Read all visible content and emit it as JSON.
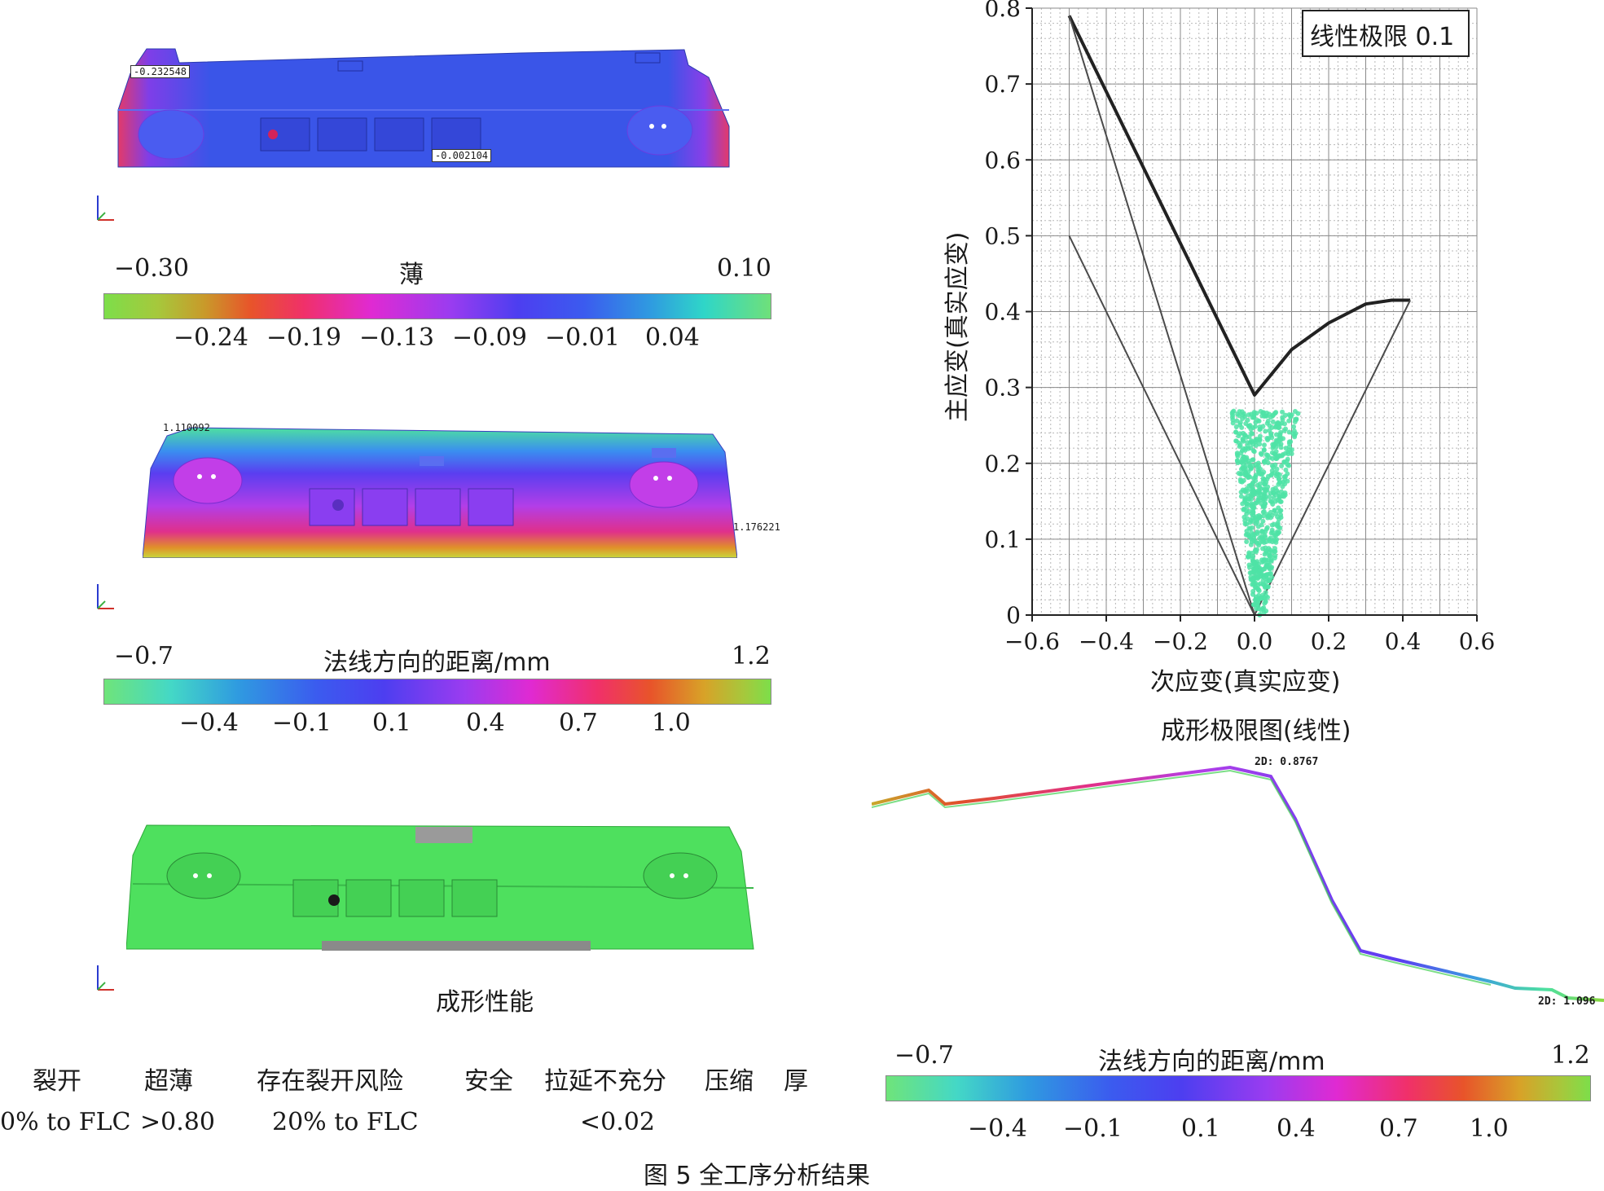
{
  "panel1": {
    "probe_top": "-0.232548",
    "probe_bottom": "-0.002104",
    "colorbar": {
      "min": "−0.30",
      "title": "薄",
      "max": "0.10",
      "ticks": [
        "−0.24",
        "−0.19",
        "−0.13",
        "−0.09",
        "−0.01",
        "0.04"
      ]
    }
  },
  "panel2": {
    "probe_top": "1.110092",
    "probe_right": "1.176221",
    "colorbar": {
      "min": "−0.7",
      "title": "法线方向的距离/mm",
      "max": "1.2",
      "ticks": [
        "−0.4",
        "−0.1",
        "0.1",
        "0.4",
        "0.7",
        "1.0"
      ]
    }
  },
  "panel3": {
    "caption": "成形性能"
  },
  "legend": {
    "headers": [
      "裂开",
      "超薄",
      "存在裂开风险",
      "安全",
      "拉延不充分",
      "压缩",
      "厚"
    ],
    "values": [
      "0% to FLC",
      ">0.80",
      "20% to FLC",
      "<0.02"
    ]
  },
  "flc": {
    "legend_box": "线性极限 0.1",
    "caption": "成形极限图(线性)"
  },
  "section": {
    "label_peak": "2D: 0.8767",
    "label_end": "2D: 1.096",
    "colorbar": {
      "min": "−0.7",
      "title": "法线方向的距离/mm",
      "max": "1.2",
      "ticks": [
        "−0.4",
        "−0.1",
        "0.1",
        "0.4",
        "0.7",
        "1.0"
      ]
    }
  },
  "figure_caption": "图 5  全工序分析结果",
  "chart_data": {
    "type": "scatter",
    "title": "成形极限图(线性)",
    "xlabel": "次应变(真实应变)",
    "ylabel": "主应变(真实应变)",
    "xlim": [
      -0.6,
      0.6
    ],
    "ylim": [
      0,
      0.8
    ],
    "xticks": [
      "−0.6",
      "−0.4",
      "−0.2",
      "0.0",
      "0.2",
      "0.4",
      "0.6"
    ],
    "yticks": [
      "0",
      "0.1",
      "0.2",
      "0.3",
      "0.4",
      "0.5",
      "0.6",
      "0.7",
      "0.8"
    ],
    "grid": true,
    "legend": "top-right",
    "series": [
      {
        "name": "线性极限 0.1",
        "style": "thick",
        "color": "#222222",
        "x": [
          -0.5,
          0.0,
          0.1,
          0.2,
          0.3,
          0.37,
          0.42
        ],
        "y": [
          0.79,
          0.29,
          0.35,
          0.385,
          0.41,
          0.415,
          0.415
        ]
      },
      {
        "style": "thin",
        "color": "#4a4a4a",
        "x": [
          -0.5,
          0.0,
          0.42
        ],
        "y": [
          0.79,
          0.0,
          0.415
        ]
      },
      {
        "style": "thin",
        "color": "#4a4a4a",
        "x": [
          -0.5,
          0.0
        ],
        "y": [
          0.5,
          0.0
        ]
      },
      {
        "style": "points",
        "color": "#4fe3a6",
        "region": {
          "x": [
            -0.03,
            0.11
          ],
          "y": [
            0.0,
            0.27
          ]
        }
      }
    ]
  },
  "colors": {
    "part_blue": "#3a55e8",
    "part_green": "#4ee05e",
    "scatter": "#4fe3a6"
  }
}
